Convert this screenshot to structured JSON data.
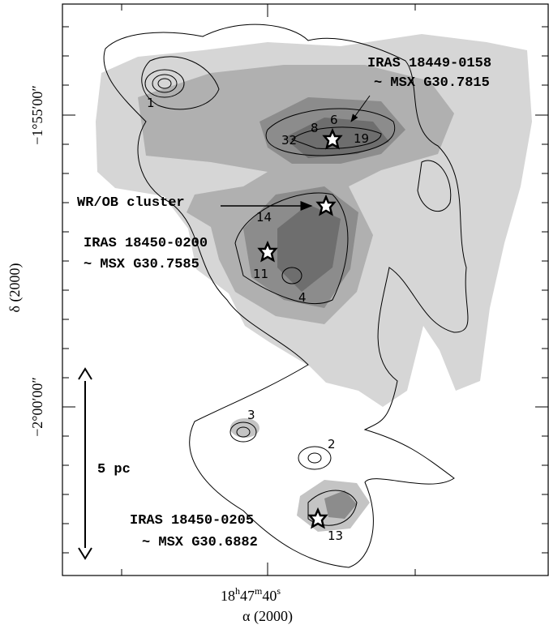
{
  "axes": {
    "x_label": "α (2000)",
    "y_label": "δ (2000)",
    "x_ticks": [
      {
        "parts": [
          "18",
          "h",
          "47",
          "m",
          "40",
          "s"
        ]
      }
    ],
    "y_ticks": [
      "−1°55′00″",
      "−2°00′00″"
    ]
  },
  "annotations": {
    "iras_18449": "IRAS 18449-0158",
    "msx_307815": "~ MSX G30.7815",
    "wr_ob": "WR/OB cluster",
    "iras_18450_0200": "IRAS 18450-0200",
    "msx_307585": "~ MSX G30.7585",
    "iras_18450_0205": "IRAS 18450-0205",
    "msx_306882": "~ MSX G30.6882",
    "scale_bar": "5 pc"
  },
  "sources": [
    "1",
    "32",
    "8",
    "6",
    "19",
    "14",
    "11",
    "4",
    "3",
    "2",
    "13"
  ]
}
